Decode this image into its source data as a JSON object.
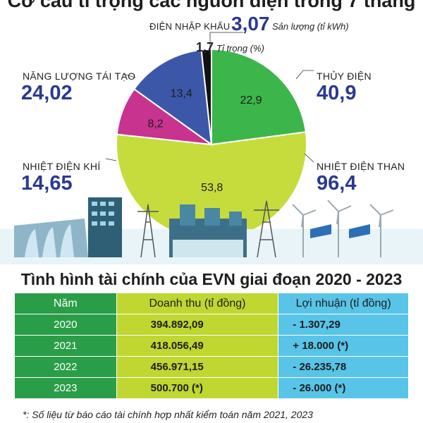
{
  "title": "Cơ cấu tỉ trọng các nguồn điện trong 7 tháng",
  "legend_note_output": "Sản lượng (tỉ kWh)",
  "legend_note_share": "Tỉ trọng (%)",
  "chart_data": {
    "type": "pie",
    "title": "Cơ cấu tỉ trọng các nguồn điện trong 7 tháng",
    "slices": [
      {
        "name": "THỦY ĐIỆN",
        "output": "40,9",
        "share": "22,9",
        "share_value": 22.9,
        "color": "#3cb54a"
      },
      {
        "name": "NHIỆT ĐIỆN THAN",
        "output": "96,4",
        "share": "53,8",
        "share_value": 53.8,
        "color": "#c6dc3c"
      },
      {
        "name": "NHIỆT ĐIỆN KHÍ",
        "output": "14,65",
        "share": "8,2",
        "share_value": 8.2,
        "color": "#c7338f"
      },
      {
        "name": "NĂNG LƯỢNG TÁI TẠO",
        "output": "24,02",
        "share": "13,4",
        "share_value": 13.4,
        "color": "#3d57a8"
      },
      {
        "name": "ĐIỆN NHẬP KHẨU",
        "output": "3,07",
        "share": "1,7",
        "share_value": 1.7,
        "color": "#111111"
      }
    ]
  },
  "financial": {
    "title": "Tình hình tài chính của EVN giai đoạn 2020 - 2023",
    "headers": [
      "Năm",
      "Doanh thu (tỉ đồng)",
      "Lợi nhuận (tỉ đồng)"
    ],
    "rows": [
      {
        "year": "2020",
        "revenue": "394.892,09",
        "profit": "- 1.307,29"
      },
      {
        "year": "2021",
        "revenue": "418.056,49",
        "profit": "+ 18.000 (*)"
      },
      {
        "year": "2022",
        "revenue": "456.971,15",
        "profit": "- 26.235,78"
      },
      {
        "year": "2023",
        "revenue": "500.700 (*)",
        "profit": "- 26.000 (*)"
      }
    ],
    "colors": {
      "year": "#2a9d49",
      "revenue": "#bfd730",
      "profit": "#58c4e8"
    }
  },
  "footnote": "*: Số liệu từ báo cáo tài chính hợp nhất kiểm toán năm 2021, 2023"
}
